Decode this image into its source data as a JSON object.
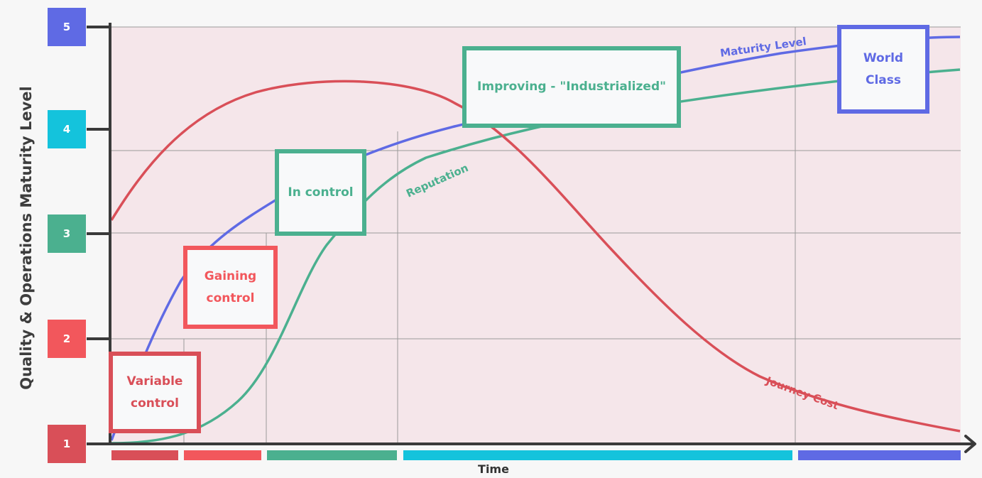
{
  "y_axis_title": "Quality & Operations Maturity Level",
  "x_axis_title": "Time",
  "levels": [
    {
      "label": "1",
      "color": "#d94f58"
    },
    {
      "label": "2",
      "color": "#f2575c"
    },
    {
      "label": "3",
      "color": "#4bb08f"
    },
    {
      "label": "4",
      "color": "#14c3dc"
    },
    {
      "label": "5",
      "color": "#5f6ae4"
    }
  ],
  "stages": [
    {
      "label": "Variable control",
      "color": "#d94f58"
    },
    {
      "label": "Gaining control",
      "color": "#f2575c"
    },
    {
      "label": "In control",
      "color": "#4bb08f"
    },
    {
      "label": "Improving - \"Industrialized\"",
      "color": "#4bb08f"
    },
    {
      "label": "World Class",
      "color": "#5f6ae4"
    }
  ],
  "curves": [
    {
      "label": "Maturity Level",
      "color": "#5f6ae4"
    },
    {
      "label": "Reputation",
      "color": "#4bb08f"
    },
    {
      "label": "Journey Cost",
      "color": "#d94f58"
    }
  ],
  "time_bands": [
    {
      "color": "#d94f58"
    },
    {
      "color": "#f2575c"
    },
    {
      "color": "#4bb08f"
    },
    {
      "color": "#14c3dc"
    },
    {
      "color": "#5f6ae4"
    }
  ],
  "colors": {
    "plot_background": "#f5e6ea",
    "axis": "#3a3a3a",
    "grid": "#9a9a9a"
  }
}
